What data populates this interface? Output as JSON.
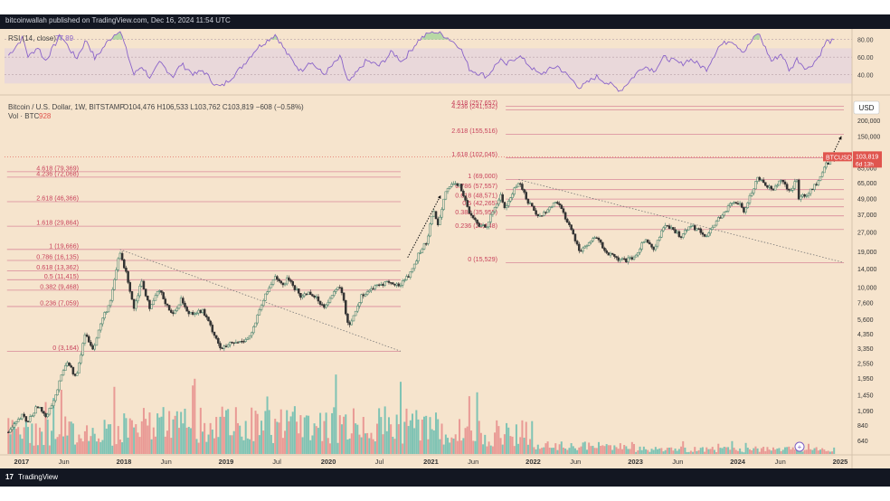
{
  "header": {
    "published": "bitcoinwallah published on TradingView.com, Dec 16, 2024 11:54 UTC"
  },
  "footer": {
    "brand": "TradingView",
    "logo": "17"
  },
  "colors": {
    "background": "#f6e4cd",
    "fib_line": "#d9899a",
    "fib_label": "#c8425c",
    "rsi_line": "#8a63c9",
    "rsi_fill": "#e6d6dc",
    "candle_up": "#3d7d68",
    "candle_down": "#333333",
    "vol_up": "#7fc3b4",
    "vol_down": "#e99a95",
    "price_tag": "#e0554e",
    "rsi_overbought": "#a7d49b"
  },
  "chart_data": {
    "type": "candlestick",
    "symbol_line": "Bitcoin / U.S. Dollar, 1W, BITSTAMP",
    "ohlc_line": "O104,476  H106,533  L103,762  C103,819  −608 (−0.58%)",
    "volume_label": "Vol · BTC",
    "volume_value": "928",
    "currency": "USD",
    "y_scale": "log",
    "ylim": [
      500,
      300000
    ],
    "y_ticks": [
      200000,
      150000,
      110000,
      85000,
      65000,
      49000,
      37000,
      27000,
      19000,
      14000,
      10000,
      7600,
      5600,
      4350,
      3350,
      2550,
      1950,
      1450,
      1090,
      840,
      640
    ],
    "y_tick_labels": [
      "200,000",
      "150,000",
      "110,000",
      "85,000",
      "65,000",
      "49,000",
      "37,000",
      "27,000",
      "19,000",
      "14,000",
      "10,000",
      "7,600",
      "5,600",
      "4,350",
      "3,350",
      "2,550",
      "1,950",
      "1,450",
      "1,090",
      "840",
      "640"
    ],
    "x_ticks": [
      "2017",
      "Jun",
      "2018",
      "Jun",
      "2019",
      "Jul",
      "2020",
      "Jul",
      "2021",
      "Jun",
      "2022",
      "Jun",
      "2023",
      "Jun",
      "2024",
      "Jun",
      "2025"
    ],
    "x_tick_dates": [
      "2017-01-01",
      "2017-06-01",
      "2018-01-01",
      "2018-06-01",
      "2019-01-01",
      "2019-07-01",
      "2020-01-01",
      "2020-07-01",
      "2021-01-01",
      "2021-06-01",
      "2022-01-01",
      "2022-06-01",
      "2023-01-01",
      "2023-06-01",
      "2024-01-01",
      "2024-06-01",
      "2025-01-01"
    ],
    "last_price": {
      "symbol": "BTCUSD",
      "price": "103,819",
      "countdown": "6d 13h"
    },
    "fib_sets": [
      {
        "start": "2017-12-15",
        "end": "2020-09-15",
        "levels": [
          {
            "label": "4.618 (79,369)",
            "value": 79369
          },
          {
            "label": "4.236 (72,068)",
            "value": 72068
          },
          {
            "label": "2.618 (46,366)",
            "value": 46366
          },
          {
            "label": "1.618 (29,864)",
            "value": 29864
          },
          {
            "label": "1 (19,666)",
            "value": 19666
          },
          {
            "label": "0.786 (16,135)",
            "value": 16135
          },
          {
            "label": "0.618 (13,362)",
            "value": 13362
          },
          {
            "label": "0.5 (11,415)",
            "value": 11415
          },
          {
            "label": "0.382 (9,468)",
            "value": 9468
          },
          {
            "label": "0.236 (7,059)",
            "value": 7059
          },
          {
            "label": "0 (3,164)",
            "value": 3164
          }
        ],
        "label_date": "2016-11-10"
      },
      {
        "start": "2021-11-10",
        "end": "2025-01-14",
        "levels": [
          {
            "label": "4.618 (257,657)",
            "value": 257657
          },
          {
            "label": "4.236 (241,532)",
            "value": 241532
          },
          {
            "label": "2.618 (155,516)",
            "value": 155516
          },
          {
            "label": "1.618 (102,045)",
            "value": 102045
          },
          {
            "label": "1 (69,000)",
            "value": 69000
          },
          {
            "label": "0.786 (57,557)",
            "value": 57557
          },
          {
            "label": "0.618 (48,571)",
            "value": 48571
          },
          {
            "label": "0.5 (42,265)",
            "value": 42265
          },
          {
            "label": "0.382 (35,955)",
            "value": 35955
          },
          {
            "label": "0.236 (28,148)",
            "value": 28148
          },
          {
            "label": "0 (15,529)",
            "value": 15529
          }
        ],
        "label_date": "2021-09-25"
      }
    ],
    "trendlines": [
      {
        "from": [
          "2017-12-18",
          19666
        ],
        "to": [
          "2020-09-15",
          3164
        ],
        "style": "dotted"
      },
      {
        "from": [
          "2021-11-10",
          69000
        ],
        "to": [
          "2025-01-14",
          15529
        ],
        "style": "dotted"
      }
    ],
    "projection_arrows": [
      {
        "from": [
          "2020-10-10",
          17000
        ],
        "to": [
          "2021-02-05",
          52000
        ]
      },
      {
        "from": [
          "2024-12-05",
          108000
        ],
        "to": [
          "2025-01-05",
          150000
        ]
      }
    ],
    "price_path": [
      [
        "2016-11-15",
        740
      ],
      [
        "2017-01-05",
        1000
      ],
      [
        "2017-01-20",
        880
      ],
      [
        "2017-03-01",
        1200
      ],
      [
        "2017-03-25",
        960
      ],
      [
        "2017-05-01",
        1400
      ],
      [
        "2017-06-10",
        2700
      ],
      [
        "2017-07-15",
        1950
      ],
      [
        "2017-08-15",
        4300
      ],
      [
        "2017-09-15",
        3300
      ],
      [
        "2017-10-15",
        5600
      ],
      [
        "2017-11-15",
        7800
      ],
      [
        "2017-12-17",
        19000
      ],
      [
        "2018-01-15",
        11500
      ],
      [
        "2018-02-06",
        6900
      ],
      [
        "2018-03-05",
        11300
      ],
      [
        "2018-04-06",
        6700
      ],
      [
        "2018-05-05",
        9600
      ],
      [
        "2018-06-25",
        6000
      ],
      [
        "2018-07-25",
        8200
      ],
      [
        "2018-08-15",
        6300
      ],
      [
        "2018-10-10",
        6500
      ],
      [
        "2018-11-20",
        4300
      ],
      [
        "2018-12-15",
        3250
      ],
      [
        "2019-01-15",
        3600
      ],
      [
        "2019-02-15",
        3700
      ],
      [
        "2019-03-30",
        4200
      ],
      [
        "2019-05-15",
        8000
      ],
      [
        "2019-06-26",
        12500
      ],
      [
        "2019-07-20",
        10000
      ],
      [
        "2019-08-10",
        11800
      ],
      [
        "2019-09-25",
        8400
      ],
      [
        "2019-10-26",
        9200
      ],
      [
        "2019-12-15",
        7100
      ],
      [
        "2020-02-13",
        10300
      ],
      [
        "2020-03-13",
        4900
      ],
      [
        "2020-04-30",
        8700
      ],
      [
        "2020-06-01",
        9600
      ],
      [
        "2020-07-27",
        11000
      ],
      [
        "2020-09-05",
        10200
      ],
      [
        "2020-10-20",
        12800
      ],
      [
        "2020-11-20",
        18500
      ],
      [
        "2020-12-20",
        23000
      ],
      [
        "2021-01-08",
        40000
      ],
      [
        "2021-01-28",
        31000
      ],
      [
        "2021-02-21",
        57000
      ],
      [
        "2021-03-13",
        61000
      ],
      [
        "2021-04-14",
        63000
      ],
      [
        "2021-05-19",
        37000
      ],
      [
        "2021-06-22",
        30000
      ],
      [
        "2021-07-20",
        30500
      ],
      [
        "2021-09-06",
        52000
      ],
      [
        "2021-09-22",
        41000
      ],
      [
        "2021-11-10",
        67000
      ],
      [
        "2021-12-10",
        48000
      ],
      [
        "2022-01-22",
        35000
      ],
      [
        "2022-03-28",
        47000
      ],
      [
        "2022-05-10",
        30000
      ],
      [
        "2022-06-18",
        19000
      ],
      [
        "2022-08-14",
        24500
      ],
      [
        "2022-09-20",
        18500
      ],
      [
        "2022-11-09",
        16000
      ],
      [
        "2022-12-30",
        16600
      ],
      [
        "2023-01-30",
        23500
      ],
      [
        "2023-03-10",
        20000
      ],
      [
        "2023-04-14",
        30500
      ],
      [
        "2023-06-15",
        25000
      ],
      [
        "2023-07-14",
        31000
      ],
      [
        "2023-09-11",
        25000
      ],
      [
        "2023-10-25",
        34500
      ],
      [
        "2023-12-08",
        44000
      ],
      [
        "2024-01-11",
        46500
      ],
      [
        "2024-01-23",
        39000
      ],
      [
        "2024-03-14",
        73000
      ],
      [
        "2024-05-01",
        57000
      ],
      [
        "2024-06-05",
        71000
      ],
      [
        "2024-07-05",
        54000
      ],
      [
        "2024-07-29",
        69000
      ],
      [
        "2024-08-05",
        50000
      ],
      [
        "2024-09-06",
        53000
      ],
      [
        "2024-10-15",
        67000
      ],
      [
        "2024-11-13",
        92000
      ],
      [
        "2024-12-16",
        103819
      ]
    ],
    "rsi": {
      "label": "RSI (14, close)",
      "value": "77.89",
      "levels": [
        80,
        60,
        40
      ],
      "level_labels": [
        "80.00",
        "60.00",
        "40.00"
      ],
      "band": [
        30,
        70
      ],
      "ylim": [
        20,
        90
      ],
      "path": [
        [
          "2016-11-15",
          62
        ],
        [
          "2017-01-05",
          82
        ],
        [
          "2017-01-25",
          60
        ],
        [
          "2017-03-01",
          72
        ],
        [
          "2017-03-25",
          55
        ],
        [
          "2017-05-20",
          85
        ],
        [
          "2017-07-15",
          58
        ],
        [
          "2017-08-20",
          80
        ],
        [
          "2017-09-20",
          58
        ],
        [
          "2017-11-05",
          78
        ],
        [
          "2017-12-17",
          92
        ],
        [
          "2018-02-06",
          40
        ],
        [
          "2018-03-05",
          50
        ],
        [
          "2018-04-06",
          36
        ],
        [
          "2018-05-10",
          54
        ],
        [
          "2018-06-25",
          38
        ],
        [
          "2018-07-25",
          52
        ],
        [
          "2018-09-10",
          40
        ],
        [
          "2018-10-10",
          45
        ],
        [
          "2018-11-25",
          28
        ],
        [
          "2018-12-15",
          26
        ],
        [
          "2019-02-15",
          45
        ],
        [
          "2019-04-20",
          70
        ],
        [
          "2019-06-26",
          86
        ],
        [
          "2019-08-10",
          62
        ],
        [
          "2019-09-25",
          44
        ],
        [
          "2019-10-26",
          56
        ],
        [
          "2019-12-15",
          40
        ],
        [
          "2020-02-13",
          60
        ],
        [
          "2020-03-13",
          30
        ],
        [
          "2020-05-15",
          56
        ],
        [
          "2020-07-01",
          50
        ],
        [
          "2020-08-15",
          66
        ],
        [
          "2020-09-20",
          55
        ],
        [
          "2020-11-20",
          80
        ],
        [
          "2021-01-08",
          90
        ],
        [
          "2021-02-21",
          84
        ],
        [
          "2021-04-14",
          72
        ],
        [
          "2021-05-19",
          46
        ],
        [
          "2021-07-20",
          38
        ],
        [
          "2021-09-06",
          58
        ],
        [
          "2021-09-22",
          50
        ],
        [
          "2021-11-10",
          62
        ],
        [
          "2022-01-22",
          40
        ],
        [
          "2022-03-28",
          50
        ],
        [
          "2022-06-18",
          25
        ],
        [
          "2022-08-14",
          38
        ],
        [
          "2022-11-09",
          22
        ],
        [
          "2023-01-30",
          50
        ],
        [
          "2023-03-10",
          45
        ],
        [
          "2023-04-14",
          60
        ],
        [
          "2023-06-15",
          52
        ],
        [
          "2023-07-14",
          58
        ],
        [
          "2023-09-11",
          46
        ],
        [
          "2023-10-25",
          72
        ],
        [
          "2023-12-08",
          80
        ],
        [
          "2024-01-23",
          66
        ],
        [
          "2024-03-14",
          88
        ],
        [
          "2024-05-01",
          55
        ],
        [
          "2024-06-05",
          64
        ],
        [
          "2024-07-05",
          44
        ],
        [
          "2024-07-29",
          58
        ],
        [
          "2024-09-06",
          46
        ],
        [
          "2024-10-15",
          60
        ],
        [
          "2024-11-13",
          78
        ],
        [
          "2024-12-16",
          77.89
        ]
      ]
    }
  }
}
